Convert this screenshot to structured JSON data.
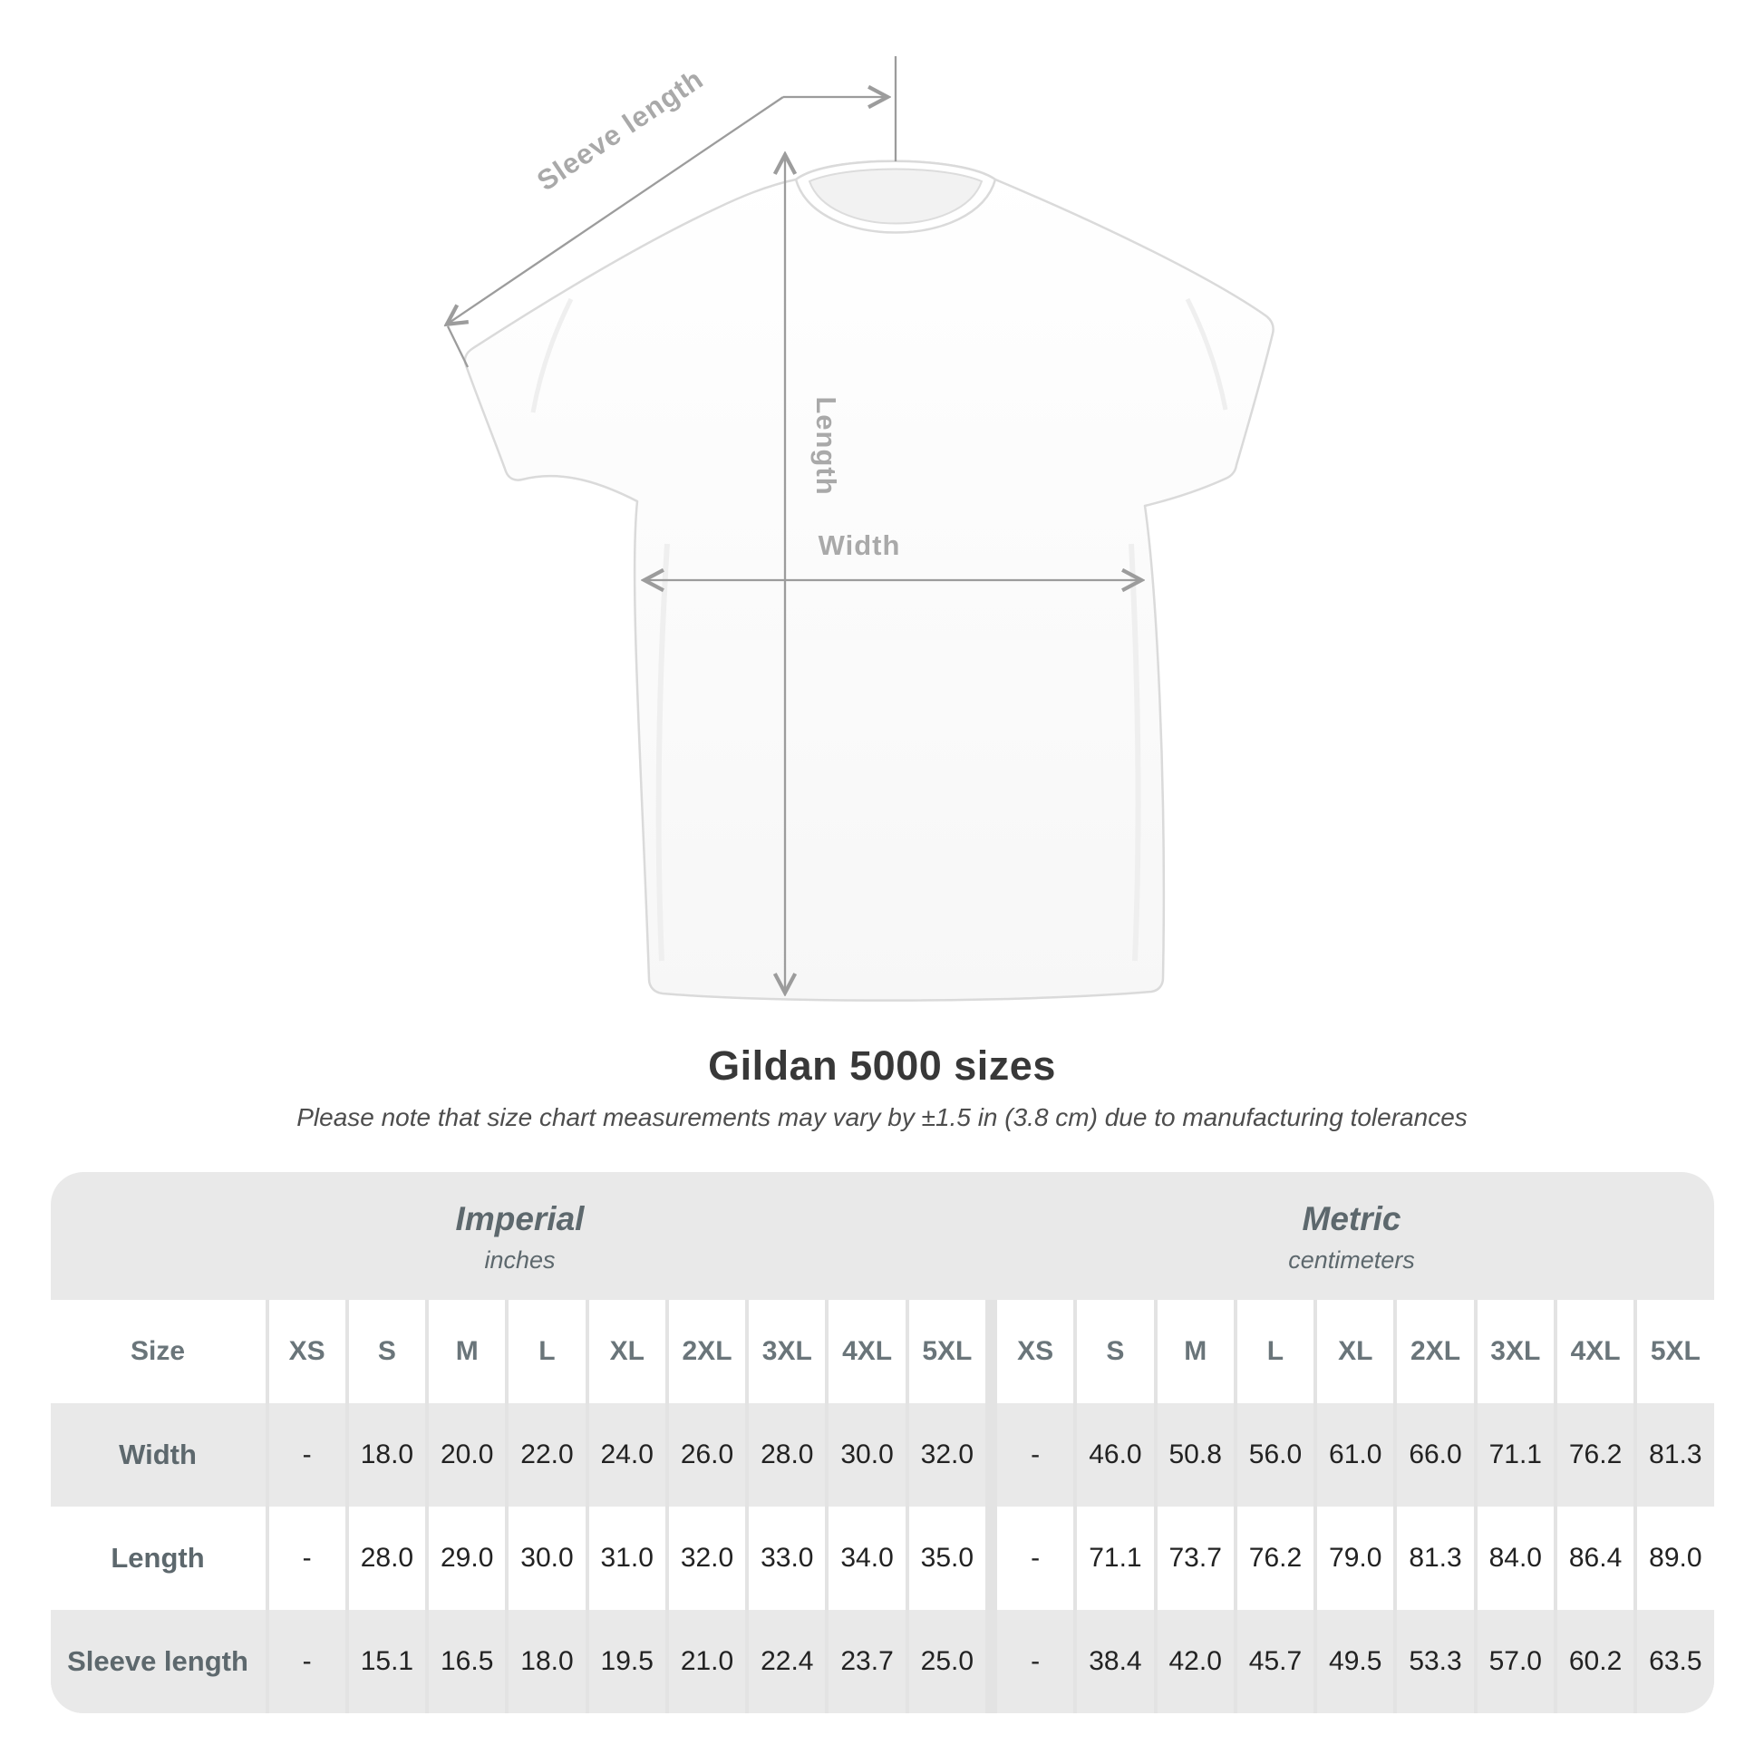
{
  "diagram": {
    "sleeve_label": "Sleeve length",
    "length_label": "Length",
    "width_label": "Width"
  },
  "title": "Gildan 5000 sizes",
  "subtitle": "Please note that size chart measurements may vary by ±1.5 in (3.8 cm) due to manufacturing tolerances",
  "chart_data": {
    "type": "table",
    "title": "Gildan 5000 sizes",
    "note": "Please note that size chart measurements may vary by ±1.5 in (3.8 cm) due to manufacturing tolerances",
    "size_header_label": "Size",
    "unit_groups": [
      {
        "name": "Imperial",
        "unit": "inches"
      },
      {
        "name": "Metric",
        "unit": "centimeters"
      }
    ],
    "sizes": [
      "XS",
      "S",
      "M",
      "L",
      "XL",
      "2XL",
      "3XL",
      "4XL",
      "5XL"
    ],
    "rows": [
      {
        "label": "Width",
        "imperial": [
          "-",
          "18.0",
          "20.0",
          "22.0",
          "24.0",
          "26.0",
          "28.0",
          "30.0",
          "32.0"
        ],
        "metric": [
          "-",
          "46.0",
          "50.8",
          "56.0",
          "61.0",
          "66.0",
          "71.1",
          "76.2",
          "81.3"
        ]
      },
      {
        "label": "Length",
        "imperial": [
          "-",
          "28.0",
          "29.0",
          "30.0",
          "31.0",
          "32.0",
          "33.0",
          "34.0",
          "35.0"
        ],
        "metric": [
          "-",
          "71.1",
          "73.7",
          "76.2",
          "79.0",
          "81.3",
          "84.0",
          "86.4",
          "89.0"
        ]
      },
      {
        "label": "Sleeve length",
        "imperial": [
          "-",
          "15.1",
          "16.5",
          "18.0",
          "19.5",
          "21.0",
          "22.4",
          "23.7",
          "25.0"
        ],
        "metric": [
          "-",
          "38.4",
          "42.0",
          "45.7",
          "49.5",
          "53.3",
          "57.0",
          "60.2",
          "63.5"
        ]
      }
    ]
  },
  "colors": {
    "row_gray": "#e9e9e9",
    "separator": "#e3e3e3",
    "header_text": "#6a757a",
    "value_text": "#222222",
    "annotation_line": "#9c9c9c",
    "annotation_text": "#a9a9a9"
  }
}
